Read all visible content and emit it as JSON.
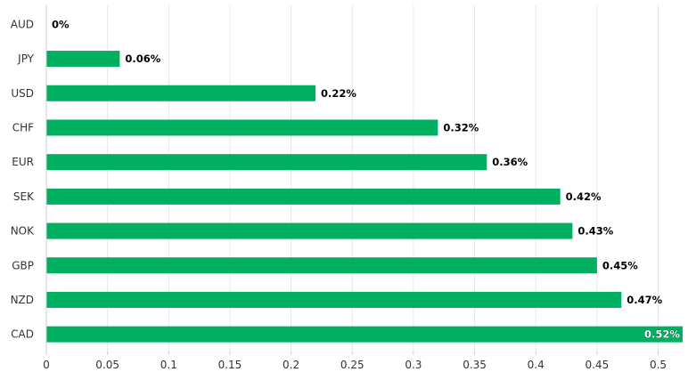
{
  "chart_data": {
    "type": "bar",
    "orientation": "horizontal",
    "categories": [
      "AUD",
      "JPY",
      "USD",
      "CHF",
      "EUR",
      "SEK",
      "NOK",
      "GBP",
      "NZD",
      "CAD"
    ],
    "values": [
      0,
      0.06,
      0.22,
      0.32,
      0.36,
      0.42,
      0.43,
      0.45,
      0.47,
      0.52
    ],
    "data_labels": [
      "0%",
      "0.06%",
      "0.22%",
      "0.32%",
      "0.36%",
      "0.42%",
      "0.43%",
      "0.45%",
      "0.47%",
      "0.52%"
    ],
    "x_ticks": [
      "0",
      "0.05",
      "0.1",
      "0.15",
      "0.2",
      "0.25",
      "0.3",
      "0.35",
      "0.4",
      "0.45",
      "0.5"
    ],
    "xlim": [
      0,
      0.52
    ],
    "title": "",
    "xlabel": "",
    "ylabel": "",
    "grid": true,
    "bar_color": "#00b060",
    "legend": "none"
  }
}
